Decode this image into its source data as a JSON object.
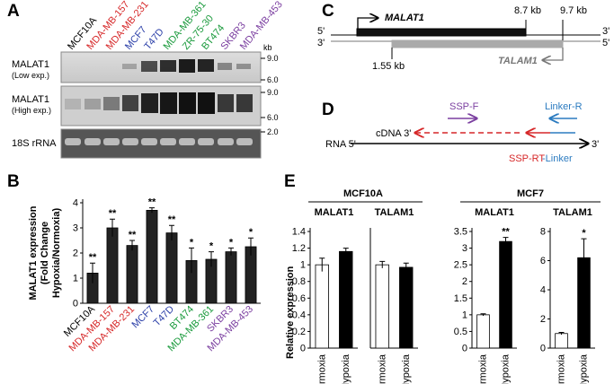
{
  "panels": [
    "A",
    "B",
    "C",
    "D",
    "E"
  ],
  "blot": {
    "lanes": [
      {
        "label": "MCF10A",
        "color": "#000000"
      },
      {
        "label": "MDA-MB-157",
        "color": "#d62728"
      },
      {
        "label": "MDA-MB-231",
        "color": "#d62728"
      },
      {
        "label": "MCF7",
        "color": "#2b3fa8"
      },
      {
        "label": "T47D",
        "color": "#2b3fa8"
      },
      {
        "label": "MDA-MB-361",
        "color": "#1a9a3c"
      },
      {
        "label": "ZR-75-30",
        "color": "#1a9a3c"
      },
      {
        "label": "BT474",
        "color": "#1a9a3c"
      },
      {
        "label": "SKBR3",
        "color": "#7b3fa0"
      },
      {
        "label": "MDA-MB-453",
        "color": "#7b3fa0"
      }
    ],
    "rows": [
      {
        "name": "MALAT1",
        "note": "(Low exp.)"
      },
      {
        "name": "MALAT1",
        "note": "(High exp.)"
      },
      {
        "name": "18S rRNA"
      }
    ],
    "kb": "kb",
    "markers": [
      "9.0",
      "6.0",
      "9.0",
      "6.0",
      "2.0"
    ]
  },
  "gene_map": {
    "gene": "MALAT1",
    "antisense": "TALAM1",
    "end1": "8.7 kb",
    "end2": "9.7 kb",
    "start": "1.55 kb",
    "top_left": "5'",
    "top_right": "3'",
    "bottom_left": "3'",
    "bottom_right": "5'"
  },
  "assay": {
    "forward": "SSP-F",
    "reverse": "Linker-R",
    "cdna": "cDNA 3'",
    "rna": "RNA 5'",
    "rna_end": "3'",
    "primer_rt": "SSP-RT",
    "primer_linker": "-Linker"
  },
  "panel_e": {
    "groups": [
      "MCF10A",
      "MCF7"
    ],
    "ylabel": "Relative expression"
  },
  "chart_data": [
    {
      "type": "bar",
      "ylabel": "MALAT1 expression\n(Fold Change\nHypoxia/Normoxia)",
      "categories": [
        "MCF10A",
        "MDA-MB-157",
        "MDA-MB-231",
        "MCF7",
        "T47D",
        "BT474",
        "MDA-MB-361",
        "SKBR3",
        "MDA-MB-453"
      ],
      "category_colors": [
        "#000000",
        "#d62728",
        "#d62728",
        "#2b3fa8",
        "#2b3fa8",
        "#1a9a3c",
        "#1a9a3c",
        "#7b3fa0",
        "#7b3fa0"
      ],
      "values": [
        1.2,
        3.0,
        2.3,
        3.7,
        2.8,
        1.7,
        1.75,
        2.05,
        2.25
      ],
      "errors": [
        0.4,
        0.35,
        0.2,
        0.1,
        0.3,
        0.5,
        0.3,
        0.15,
        0.35
      ],
      "sig": [
        "**",
        "**",
        "**",
        "**",
        "**",
        "*",
        "*",
        "*",
        "*"
      ],
      "colors": [
        "#222222",
        "#222222",
        "#222222",
        "#222222",
        "#222222",
        "#222222",
        "#222222",
        "#222222",
        "#222222"
      ],
      "ylim": [
        0,
        4
      ],
      "yticks": [
        0,
        1,
        2,
        3,
        4
      ]
    },
    {
      "type": "bar",
      "title": "MALAT1",
      "categories": [
        "Normoxia",
        "Hypoxia"
      ],
      "values": [
        1.0,
        1.16
      ],
      "errors": [
        0.08,
        0.04
      ],
      "colors": [
        "#ffffff",
        "#000000"
      ],
      "ylim": [
        0,
        1.4
      ],
      "yticks": [
        0,
        0.2,
        0.4,
        0.6,
        0.8,
        1,
        1.2,
        1.4
      ]
    },
    {
      "type": "bar",
      "title": "TALAM1",
      "categories": [
        "Normoxia",
        "Hypoxia"
      ],
      "values": [
        1.0,
        0.97
      ],
      "errors": [
        0.04,
        0.05
      ],
      "colors": [
        "#ffffff",
        "#000000"
      ],
      "ylim": [
        0,
        1.4
      ]
    },
    {
      "type": "bar",
      "title": "MALAT1",
      "categories": [
        "Normoxia",
        "Hypoxia"
      ],
      "values": [
        1.0,
        3.2
      ],
      "errors": [
        0.03,
        0.12
      ],
      "sig": [
        null,
        "**"
      ],
      "colors": [
        "#ffffff",
        "#000000"
      ],
      "ylim": [
        0,
        3.5
      ],
      "yticks": [
        0,
        0.5,
        1,
        1.5,
        2,
        2.5,
        3,
        3.5
      ]
    },
    {
      "type": "bar",
      "title": "TALAM1",
      "categories": [
        "Normoxia",
        "Hypoxia"
      ],
      "values": [
        1.0,
        6.2
      ],
      "errors": [
        0.08,
        1.3
      ],
      "sig": [
        null,
        "*"
      ],
      "colors": [
        "#ffffff",
        "#000000"
      ],
      "ylim": [
        0,
        8
      ],
      "yticks": [
        0,
        2,
        4,
        6,
        8
      ]
    }
  ]
}
